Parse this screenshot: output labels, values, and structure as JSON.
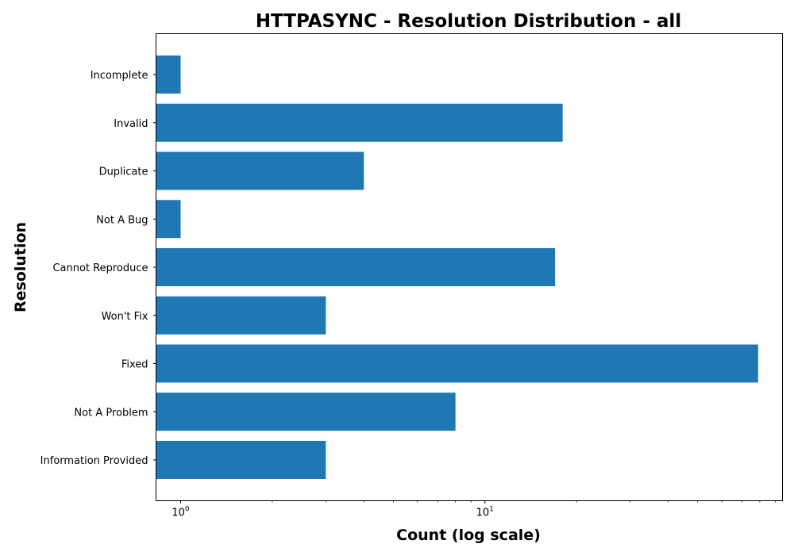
{
  "chart_data": {
    "type": "bar",
    "orientation": "horizontal",
    "title": "HTTPASYNC - Resolution Distribution - all",
    "xlabel": "Count (log scale)",
    "ylabel": "Resolution",
    "xscale": "log",
    "xlim": [
      0.83,
      95
    ],
    "categories": [
      "Incomplete",
      "Invalid",
      "Duplicate",
      "Not A Bug",
      "Cannot Reproduce",
      "Won't Fix",
      "Fixed",
      "Not A Problem",
      "Information Provided"
    ],
    "values": [
      1,
      18,
      4,
      1,
      17,
      3,
      79,
      8,
      3
    ],
    "x_major_ticks": [
      {
        "value": 1,
        "base": "10",
        "exp": "0"
      },
      {
        "value": 10,
        "base": "10",
        "exp": "1"
      }
    ],
    "x_minor_ticks": [
      2,
      3,
      4,
      5,
      6,
      7,
      8,
      9,
      20,
      30,
      40,
      50,
      60,
      70,
      80,
      90
    ],
    "colors": {
      "bar": "#1f77b4",
      "axes": "#000000",
      "background": "#ffffff"
    }
  }
}
